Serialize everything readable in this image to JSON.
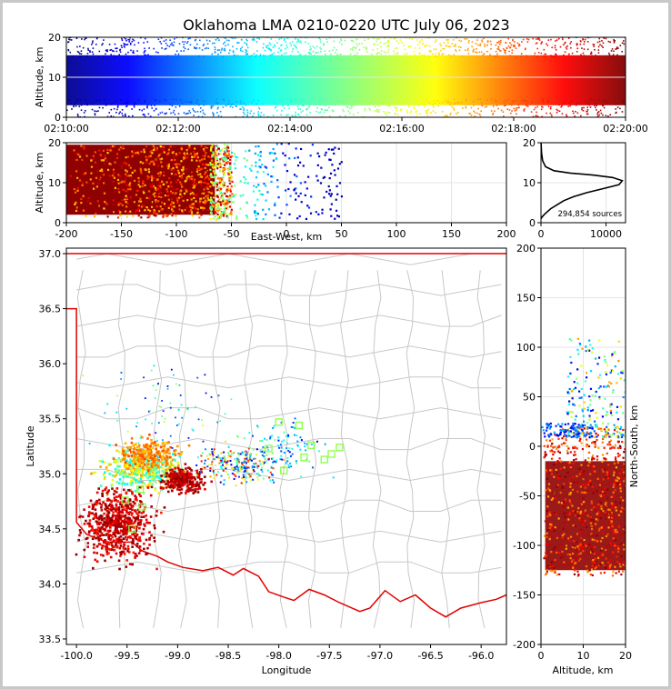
{
  "title": "Oklahoma LMA 0210-0220 UTC July 06, 2023",
  "colors": {
    "frame": "#c8c8c8",
    "state_border": "#e00000",
    "county_lines": "#c8c8c8",
    "square_marker": "#88ff44"
  },
  "chart_data": [
    {
      "type": "scatter",
      "panel": "altitude-time",
      "ylabel": "Altitude, km",
      "xlabel": "",
      "ylim": [
        0,
        20
      ],
      "yticks": [
        "0",
        "10",
        "20"
      ],
      "xticks": [
        "02:10:00",
        "02:12:00",
        "02:14:00",
        "02:16:00",
        "02:18:00",
        "02:20:00"
      ],
      "colormap": "jet by time"
    },
    {
      "type": "scatter",
      "panel": "east-west-altitude",
      "xlabel": "East-West, km",
      "ylabel": "Altitude, km",
      "xlim": [
        -200,
        200
      ],
      "ylim": [
        0,
        20
      ],
      "xticks": [
        "-200",
        "-150",
        "-100",
        "-50",
        "0",
        "50",
        "100",
        "150",
        "200"
      ],
      "yticks": [
        "0",
        "10",
        "20"
      ]
    },
    {
      "type": "line",
      "panel": "altitude-histogram",
      "xlim": [
        0,
        13000
      ],
      "ylim": [
        0,
        20
      ],
      "xticks": [
        "0",
        "10000"
      ],
      "yticks": [
        "0",
        "10",
        "20"
      ],
      "annotation": "294,854 sources",
      "x": [
        0,
        200,
        600,
        1500,
        2500,
        3500,
        5000,
        7000,
        9500,
        12000,
        12500,
        11000,
        8000,
        4500,
        2000,
        700,
        250,
        80,
        20
      ],
      "y": [
        1,
        1.5,
        2.2,
        3.5,
        4.5,
        5.5,
        6.5,
        7.5,
        8.5,
        9.5,
        10.5,
        11.3,
        11.9,
        12.4,
        13,
        14,
        15.5,
        17.5,
        20
      ]
    },
    {
      "type": "scatter",
      "panel": "plan-view",
      "xlabel": "Longitude",
      "ylabel": "Latitude",
      "xlim": [
        -100.1,
        -95.75
      ],
      "ylim": [
        33.45,
        37.05
      ],
      "xticks": [
        "-100.0",
        "-99.5",
        "-99.0",
        "-98.5",
        "-98.0",
        "-97.5",
        "-97.0",
        "-96.5",
        "-96.0"
      ],
      "yticks": [
        "33.5",
        "34.0",
        "34.5",
        "35.0",
        "35.5",
        "36.0",
        "36.5",
        "37.0"
      ],
      "stations": [
        {
          "lon": -99.52,
          "lat": 34.76
        },
        {
          "lon": -99.37,
          "lat": 34.86
        },
        {
          "lon": -99.35,
          "lat": 34.7
        },
        {
          "lon": -99.45,
          "lat": 34.5
        },
        {
          "lon": -98.1,
          "lat": 35.23
        },
        {
          "lon": -98.0,
          "lat": 35.47
        },
        {
          "lon": -97.95,
          "lat": 35.03
        },
        {
          "lon": -97.8,
          "lat": 35.44
        },
        {
          "lon": -97.75,
          "lat": 35.15
        },
        {
          "lon": -97.68,
          "lat": 35.26
        },
        {
          "lon": -97.55,
          "lat": 35.13
        },
        {
          "lon": -97.48,
          "lat": 35.18
        },
        {
          "lon": -97.4,
          "lat": 35.24
        }
      ]
    },
    {
      "type": "scatter",
      "panel": "north-south-altitude",
      "xlabel": "Altitude, km",
      "ylabel": "North-South, km",
      "xlim": [
        0,
        20
      ],
      "ylim": [
        -200,
        200
      ],
      "xticks": [
        "0",
        "10",
        "20"
      ],
      "yticks": [
        "-200",
        "-150",
        "-100",
        "-50",
        "0",
        "50",
        "100",
        "150",
        "200"
      ]
    }
  ]
}
